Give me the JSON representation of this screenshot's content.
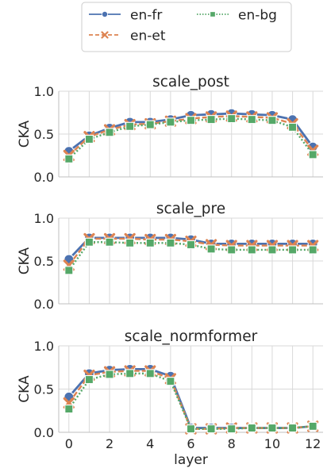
{
  "chart_data": [
    {
      "type": "line",
      "title": "scale_post",
      "ylabel": "CKA",
      "xlabel": "",
      "x": [
        0,
        1,
        2,
        3,
        4,
        5,
        6,
        7,
        8,
        9,
        10,
        11,
        12
      ],
      "ylim": [
        0.0,
        1.0
      ],
      "yticks": [
        "0.0",
        "0.5",
        "1.0"
      ],
      "grid": true,
      "series": [
        {
          "name": "en-fr",
          "values": [
            0.3,
            0.48,
            0.57,
            0.64,
            0.64,
            0.67,
            0.72,
            0.73,
            0.74,
            0.73,
            0.72,
            0.67,
            0.35
          ]
        },
        {
          "name": "en-et",
          "values": [
            0.25,
            0.47,
            0.55,
            0.61,
            0.62,
            0.65,
            0.68,
            0.7,
            0.71,
            0.7,
            0.69,
            0.62,
            0.31
          ]
        },
        {
          "name": "en-bg",
          "values": [
            0.21,
            0.44,
            0.52,
            0.59,
            0.61,
            0.64,
            0.66,
            0.67,
            0.68,
            0.67,
            0.66,
            0.58,
            0.26
          ]
        }
      ]
    },
    {
      "type": "line",
      "title": "scale_pre",
      "ylabel": "CKA",
      "xlabel": "",
      "x": [
        0,
        1,
        2,
        3,
        4,
        5,
        6,
        7,
        8,
        9,
        10,
        11,
        12
      ],
      "ylim": [
        0.0,
        1.0
      ],
      "yticks": [
        "0.0",
        "0.5",
        "1.0"
      ],
      "grid": true,
      "series": [
        {
          "name": "en-fr",
          "values": [
            0.52,
            0.77,
            0.77,
            0.77,
            0.77,
            0.77,
            0.75,
            0.7,
            0.7,
            0.7,
            0.7,
            0.7,
            0.7
          ]
        },
        {
          "name": "en-et",
          "values": [
            0.45,
            0.76,
            0.76,
            0.76,
            0.75,
            0.75,
            0.73,
            0.69,
            0.68,
            0.68,
            0.68,
            0.68,
            0.68
          ]
        },
        {
          "name": "en-bg",
          "values": [
            0.39,
            0.72,
            0.72,
            0.71,
            0.71,
            0.71,
            0.69,
            0.64,
            0.63,
            0.63,
            0.63,
            0.63,
            0.63
          ]
        }
      ]
    },
    {
      "type": "line",
      "title": "scale_normformer",
      "ylabel": "CKA",
      "xlabel": "layer",
      "x": [
        0,
        1,
        2,
        3,
        4,
        5,
        6,
        7,
        8,
        9,
        10,
        11,
        12
      ],
      "ylim": [
        0.0,
        1.0
      ],
      "yticks": [
        "0.0",
        "0.5",
        "1.0"
      ],
      "xticks": [
        "0",
        "2",
        "4",
        "6",
        "8",
        "10",
        "12"
      ],
      "grid": true,
      "series": [
        {
          "name": "en-fr",
          "values": [
            0.41,
            0.68,
            0.72,
            0.73,
            0.73,
            0.65,
            0.05,
            0.05,
            0.05,
            0.05,
            0.05,
            0.05,
            0.07
          ]
        },
        {
          "name": "en-et",
          "values": [
            0.34,
            0.66,
            0.7,
            0.71,
            0.71,
            0.62,
            0.04,
            0.04,
            0.05,
            0.05,
            0.05,
            0.05,
            0.07
          ]
        },
        {
          "name": "en-bg",
          "values": [
            0.27,
            0.61,
            0.67,
            0.68,
            0.68,
            0.59,
            0.04,
            0.04,
            0.04,
            0.05,
            0.05,
            0.05,
            0.07
          ]
        }
      ]
    }
  ],
  "legend": {
    "placement": "top-center",
    "items": [
      {
        "name": "en-fr",
        "color": "#4c72b0",
        "marker": "circle",
        "dash": "solid"
      },
      {
        "name": "en-et",
        "color": "#dd8452",
        "marker": "x",
        "dash": "dashed"
      },
      {
        "name": "en-bg",
        "color": "#55a868",
        "marker": "square",
        "dash": "dotted"
      }
    ]
  }
}
